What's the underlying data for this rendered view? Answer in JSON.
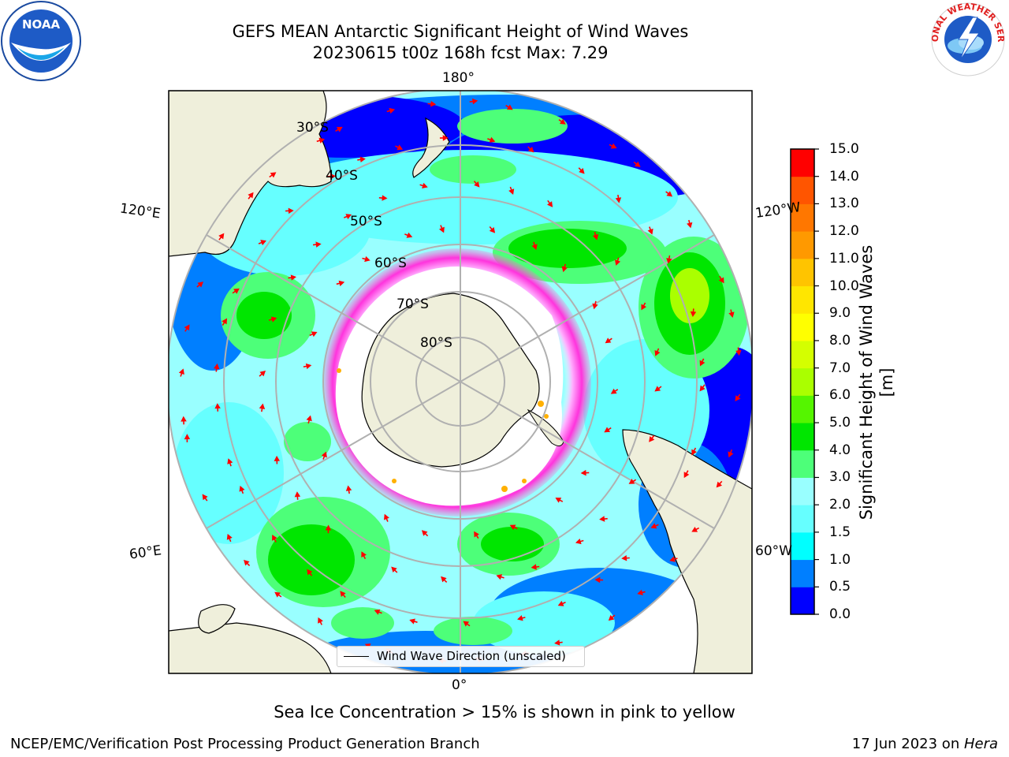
{
  "title": {
    "line1": "GEFS MEAN Antarctic Significant Height of Wind Waves",
    "line2": "20230615 t00z 168h fcst   Max: 7.29"
  },
  "map": {
    "projection": "south-polar-stereographic",
    "longitude_labels": [
      "180°",
      "120°E",
      "120°W",
      "60°E",
      "60°W",
      "0°"
    ],
    "latitude_labels": [
      "30°S",
      "40°S",
      "50°S",
      "60°S",
      "70°S",
      "80°S"
    ],
    "land_color": "#efefdb",
    "sea_ice_color": "#ffffff",
    "arrow_color": "#ff0000"
  },
  "colorbar": {
    "label": "Significant Height of Wind Waves [m]",
    "ticks": [
      "15.0",
      "14.0",
      "13.0",
      "12.0",
      "11.0",
      "10.0",
      "9.0",
      "8.0",
      "7.0",
      "6.0",
      "5.0",
      "4.0",
      "3.0",
      "2.0",
      "1.5",
      "1.0",
      "0.5",
      "0.0"
    ],
    "colors_bottom_to_top": [
      "#0000ff",
      "#007fff",
      "#00ffff",
      "#66ffff",
      "#99ffff",
      "#4dff79",
      "#00e600",
      "#55f500",
      "#aaff00",
      "#d4ff00",
      "#ffff00",
      "#ffe600",
      "#ffc400",
      "#ff9900",
      "#ff7700",
      "#ff5500",
      "#ff0000"
    ]
  },
  "legend": {
    "label": "Wind Wave Direction (unscaled)"
  },
  "logos": {
    "left": "NOAA",
    "right_text": "NATIONAL WEATHER SERVICE"
  },
  "notes": {
    "ice": "Sea Ice Concentration > 15% is shown in pink to yellow"
  },
  "footer": {
    "left": "NCEP/EMC/Verification Post Processing Product Generation Branch",
    "date": "17 Jun 2023 on ",
    "machine": "Hera"
  }
}
